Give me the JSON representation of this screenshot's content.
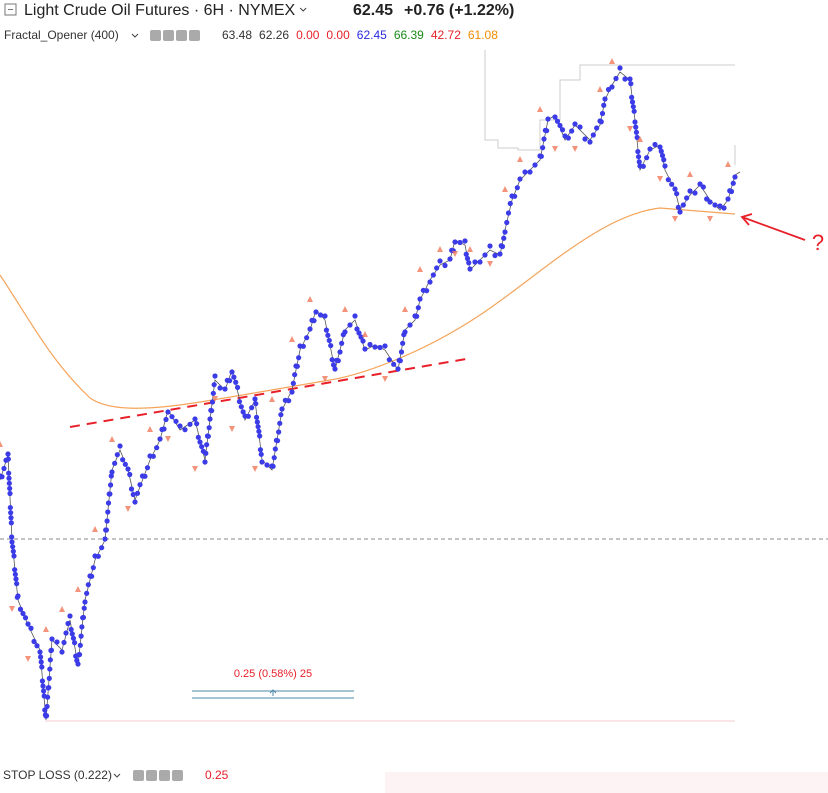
{
  "header": {
    "title": "Light Crude Oil Futures · 6H · NYMEX",
    "price": "62.45",
    "change": "+0.76 (+1.22%)"
  },
  "indicator": {
    "name": "Fractal_Opener (400)",
    "values": [
      "63.48",
      "62.26",
      "0.00",
      "0.00",
      "62.45",
      "66.39",
      "42.72",
      "61.08"
    ],
    "colors": [
      "#333333",
      "#333333",
      "#e8202a",
      "#e8202a",
      "#2a2adf",
      "#1a8a1a",
      "#e8202a",
      "#f08c00"
    ]
  },
  "measure_label": "0.25 (0.58%) 25",
  "annotation": "?",
  "footer": {
    "name": "STOP LOSS (0.222)",
    "value": "0.25"
  }
}
